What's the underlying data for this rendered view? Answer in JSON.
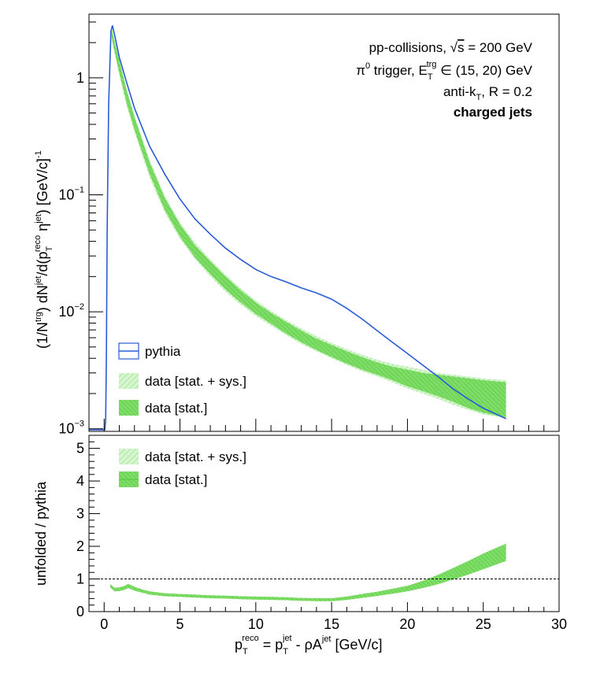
{
  "chart_data": [
    {
      "panel": "top",
      "type": "line",
      "scale": "log",
      "xlim": [
        -1,
        30
      ],
      "ylim": [
        0.00095,
        3.5
      ],
      "yticks": [
        {
          "value": 1,
          "base": "1",
          "exp": ""
        },
        {
          "value": 0.1,
          "base": "10",
          "exp": "−1"
        },
        {
          "value": 0.01,
          "base": "10",
          "exp": "−2"
        },
        {
          "value": 0.001,
          "base": "10",
          "exp": "−3"
        }
      ],
      "ylabel": {
        "pre": "(1/N",
        "sup1": "trg",
        "mid1": ") dN",
        "sup2": "jet",
        "mid2": "/d(p",
        "sub3": "T",
        "sup3": "reco",
        "mid3": " η",
        "sup4": "jet",
        "mid4": ") [GeV/c]",
        "sup5": "-1"
      },
      "annotations": {
        "line1": {
          "pre": "pp-collisions, ",
          "sqrt": "√",
          "s": "s",
          "post": " = 200 GeV"
        },
        "line2": {
          "pi": "π",
          "pisup": "0",
          "mid": " trigger, E",
          "sub": "T",
          "sup": "trg",
          "post": " ∈ (15, 20) GeV"
        },
        "line3": {
          "pre": "anti-k",
          "sub": "T",
          "post": ", R = 0.2"
        },
        "line4": "charged jets"
      },
      "legend": [
        {
          "label": "pythia",
          "style": "line-box",
          "color": "#2a5bd7"
        },
        {
          "label": "data [stat. + sys.]",
          "style": "light-fill",
          "color": "#b8ecb0"
        },
        {
          "label": "data [stat.]",
          "style": "fill",
          "color": "#6ad852"
        }
      ],
      "series": [
        {
          "name": "pythia",
          "color": "#2a5bd7",
          "x": [
            -1,
            0.05,
            0.1,
            0.15,
            0.2,
            0.3,
            0.45,
            0.55,
            0.7,
            1,
            1.5,
            2,
            3,
            4,
            5,
            6,
            7,
            8,
            9,
            10,
            11,
            12,
            13,
            14,
            15,
            16,
            17,
            18,
            19,
            20,
            21,
            22,
            23,
            24,
            25,
            26.5
          ],
          "y": [
            0.00098,
            0.00098,
            0.0012,
            0.004,
            0.05,
            0.6,
            2.5,
            2.8,
            2.3,
            1.5,
            0.9,
            0.55,
            0.26,
            0.15,
            0.092,
            0.062,
            0.046,
            0.035,
            0.028,
            0.023,
            0.02,
            0.018,
            0.016,
            0.0145,
            0.0128,
            0.0107,
            0.0087,
            0.0069,
            0.0055,
            0.0044,
            0.0035,
            0.0028,
            0.0022,
            0.0018,
            0.0015,
            0.00122
          ]
        },
        {
          "name": "data [stat. + sys.]",
          "color": "#b8ecb0",
          "x": [
            0.5,
            0.7,
            1,
            1.5,
            2,
            3,
            4,
            5,
            6,
            7,
            8,
            9,
            10,
            11,
            12,
            13,
            14,
            15,
            16,
            17,
            18,
            19,
            20,
            21,
            22,
            23,
            24,
            25,
            26.5
          ],
          "low": [
            2.1,
            1.6,
            1.05,
            0.56,
            0.34,
            0.14,
            0.07,
            0.042,
            0.028,
            0.02,
            0.0148,
            0.0115,
            0.0092,
            0.0076,
            0.0063,
            0.0053,
            0.0046,
            0.004,
            0.0035,
            0.0031,
            0.0028,
            0.0025,
            0.0022,
            0.002,
            0.0018,
            0.0016,
            0.00145,
            0.00132,
            0.00123
          ],
          "high": [
            2.7,
            2.1,
            1.45,
            0.8,
            0.48,
            0.2,
            0.098,
            0.058,
            0.039,
            0.028,
            0.0208,
            0.0159,
            0.0125,
            0.0102,
            0.0085,
            0.0072,
            0.0062,
            0.0054,
            0.0048,
            0.0043,
            0.0039,
            0.0036,
            0.0034,
            0.0032,
            0.003,
            0.0029,
            0.0028,
            0.0027,
            0.0026
          ]
        },
        {
          "name": "data [stat.]",
          "color": "#6ad852",
          "x": [
            0.5,
            0.7,
            1,
            1.5,
            2,
            3,
            4,
            5,
            6,
            7,
            8,
            9,
            10,
            11,
            12,
            13,
            14,
            15,
            16,
            17,
            18,
            19,
            20,
            21,
            22,
            23,
            24,
            25,
            26.5
          ],
          "low": [
            2.2,
            1.65,
            1.1,
            0.6,
            0.36,
            0.15,
            0.074,
            0.044,
            0.029,
            0.021,
            0.0155,
            0.012,
            0.0096,
            0.0079,
            0.0065,
            0.0055,
            0.0047,
            0.0041,
            0.0036,
            0.0032,
            0.0029,
            0.0026,
            0.0023,
            0.0021,
            0.0019,
            0.0017,
            0.0015,
            0.00137,
            0.00125
          ],
          "high": [
            2.6,
            2.0,
            1.4,
            0.77,
            0.46,
            0.19,
            0.094,
            0.056,
            0.037,
            0.027,
            0.02,
            0.0153,
            0.012,
            0.0098,
            0.0082,
            0.0069,
            0.0059,
            0.0052,
            0.0046,
            0.0041,
            0.0037,
            0.0034,
            0.0032,
            0.003,
            0.0029,
            0.0028,
            0.0027,
            0.0026,
            0.0025
          ]
        }
      ]
    },
    {
      "panel": "bottom",
      "type": "area",
      "xlim": [
        -1,
        30
      ],
      "ylim": [
        0,
        5.4
      ],
      "yticks": [
        "0",
        "1",
        "2",
        "3",
        "4",
        "5"
      ],
      "xticks": [
        "0",
        "5",
        "10",
        "15",
        "20",
        "25",
        "30"
      ],
      "ylabel": "unfolded / pythia",
      "xlabel": {
        "p": "p",
        "sub1": "T",
        "sup1": "reco",
        "eq": " = p",
        "sub2": "T",
        "sup2": "jet",
        "mid": " - ρA",
        "sup3": "jet",
        "post": " [GeV/c]"
      },
      "reference_line": 1,
      "legend": [
        {
          "label": "data [stat. + sys.]",
          "style": "light-fill",
          "color": "#b8ecb0"
        },
        {
          "label": "data [stat.]",
          "style": "fill",
          "color": "#6ad852"
        }
      ],
      "series": [
        {
          "name": "data [stat.]",
          "color": "#6ad852",
          "x": [
            0.4,
            0.7,
            1,
            1.3,
            1.6,
            2,
            2.5,
            3,
            4,
            5,
            6,
            7,
            8,
            9,
            10,
            11,
            12,
            13,
            14,
            15,
            16,
            17,
            18,
            19,
            20,
            21,
            22,
            23,
            24,
            25,
            26.5
          ],
          "low": [
            0.74,
            0.62,
            0.63,
            0.66,
            0.72,
            0.64,
            0.58,
            0.52,
            0.47,
            0.45,
            0.43,
            0.41,
            0.4,
            0.38,
            0.37,
            0.36,
            0.35,
            0.33,
            0.32,
            0.32,
            0.36,
            0.42,
            0.48,
            0.55,
            0.62,
            0.72,
            0.84,
            0.98,
            1.13,
            1.3,
            1.55
          ],
          "high": [
            0.84,
            0.73,
            0.74,
            0.78,
            0.85,
            0.76,
            0.68,
            0.62,
            0.56,
            0.54,
            0.52,
            0.5,
            0.49,
            0.47,
            0.46,
            0.45,
            0.44,
            0.42,
            0.41,
            0.41,
            0.46,
            0.54,
            0.61,
            0.7,
            0.79,
            0.94,
            1.12,
            1.33,
            1.55,
            1.78,
            2.08
          ]
        }
      ]
    }
  ]
}
